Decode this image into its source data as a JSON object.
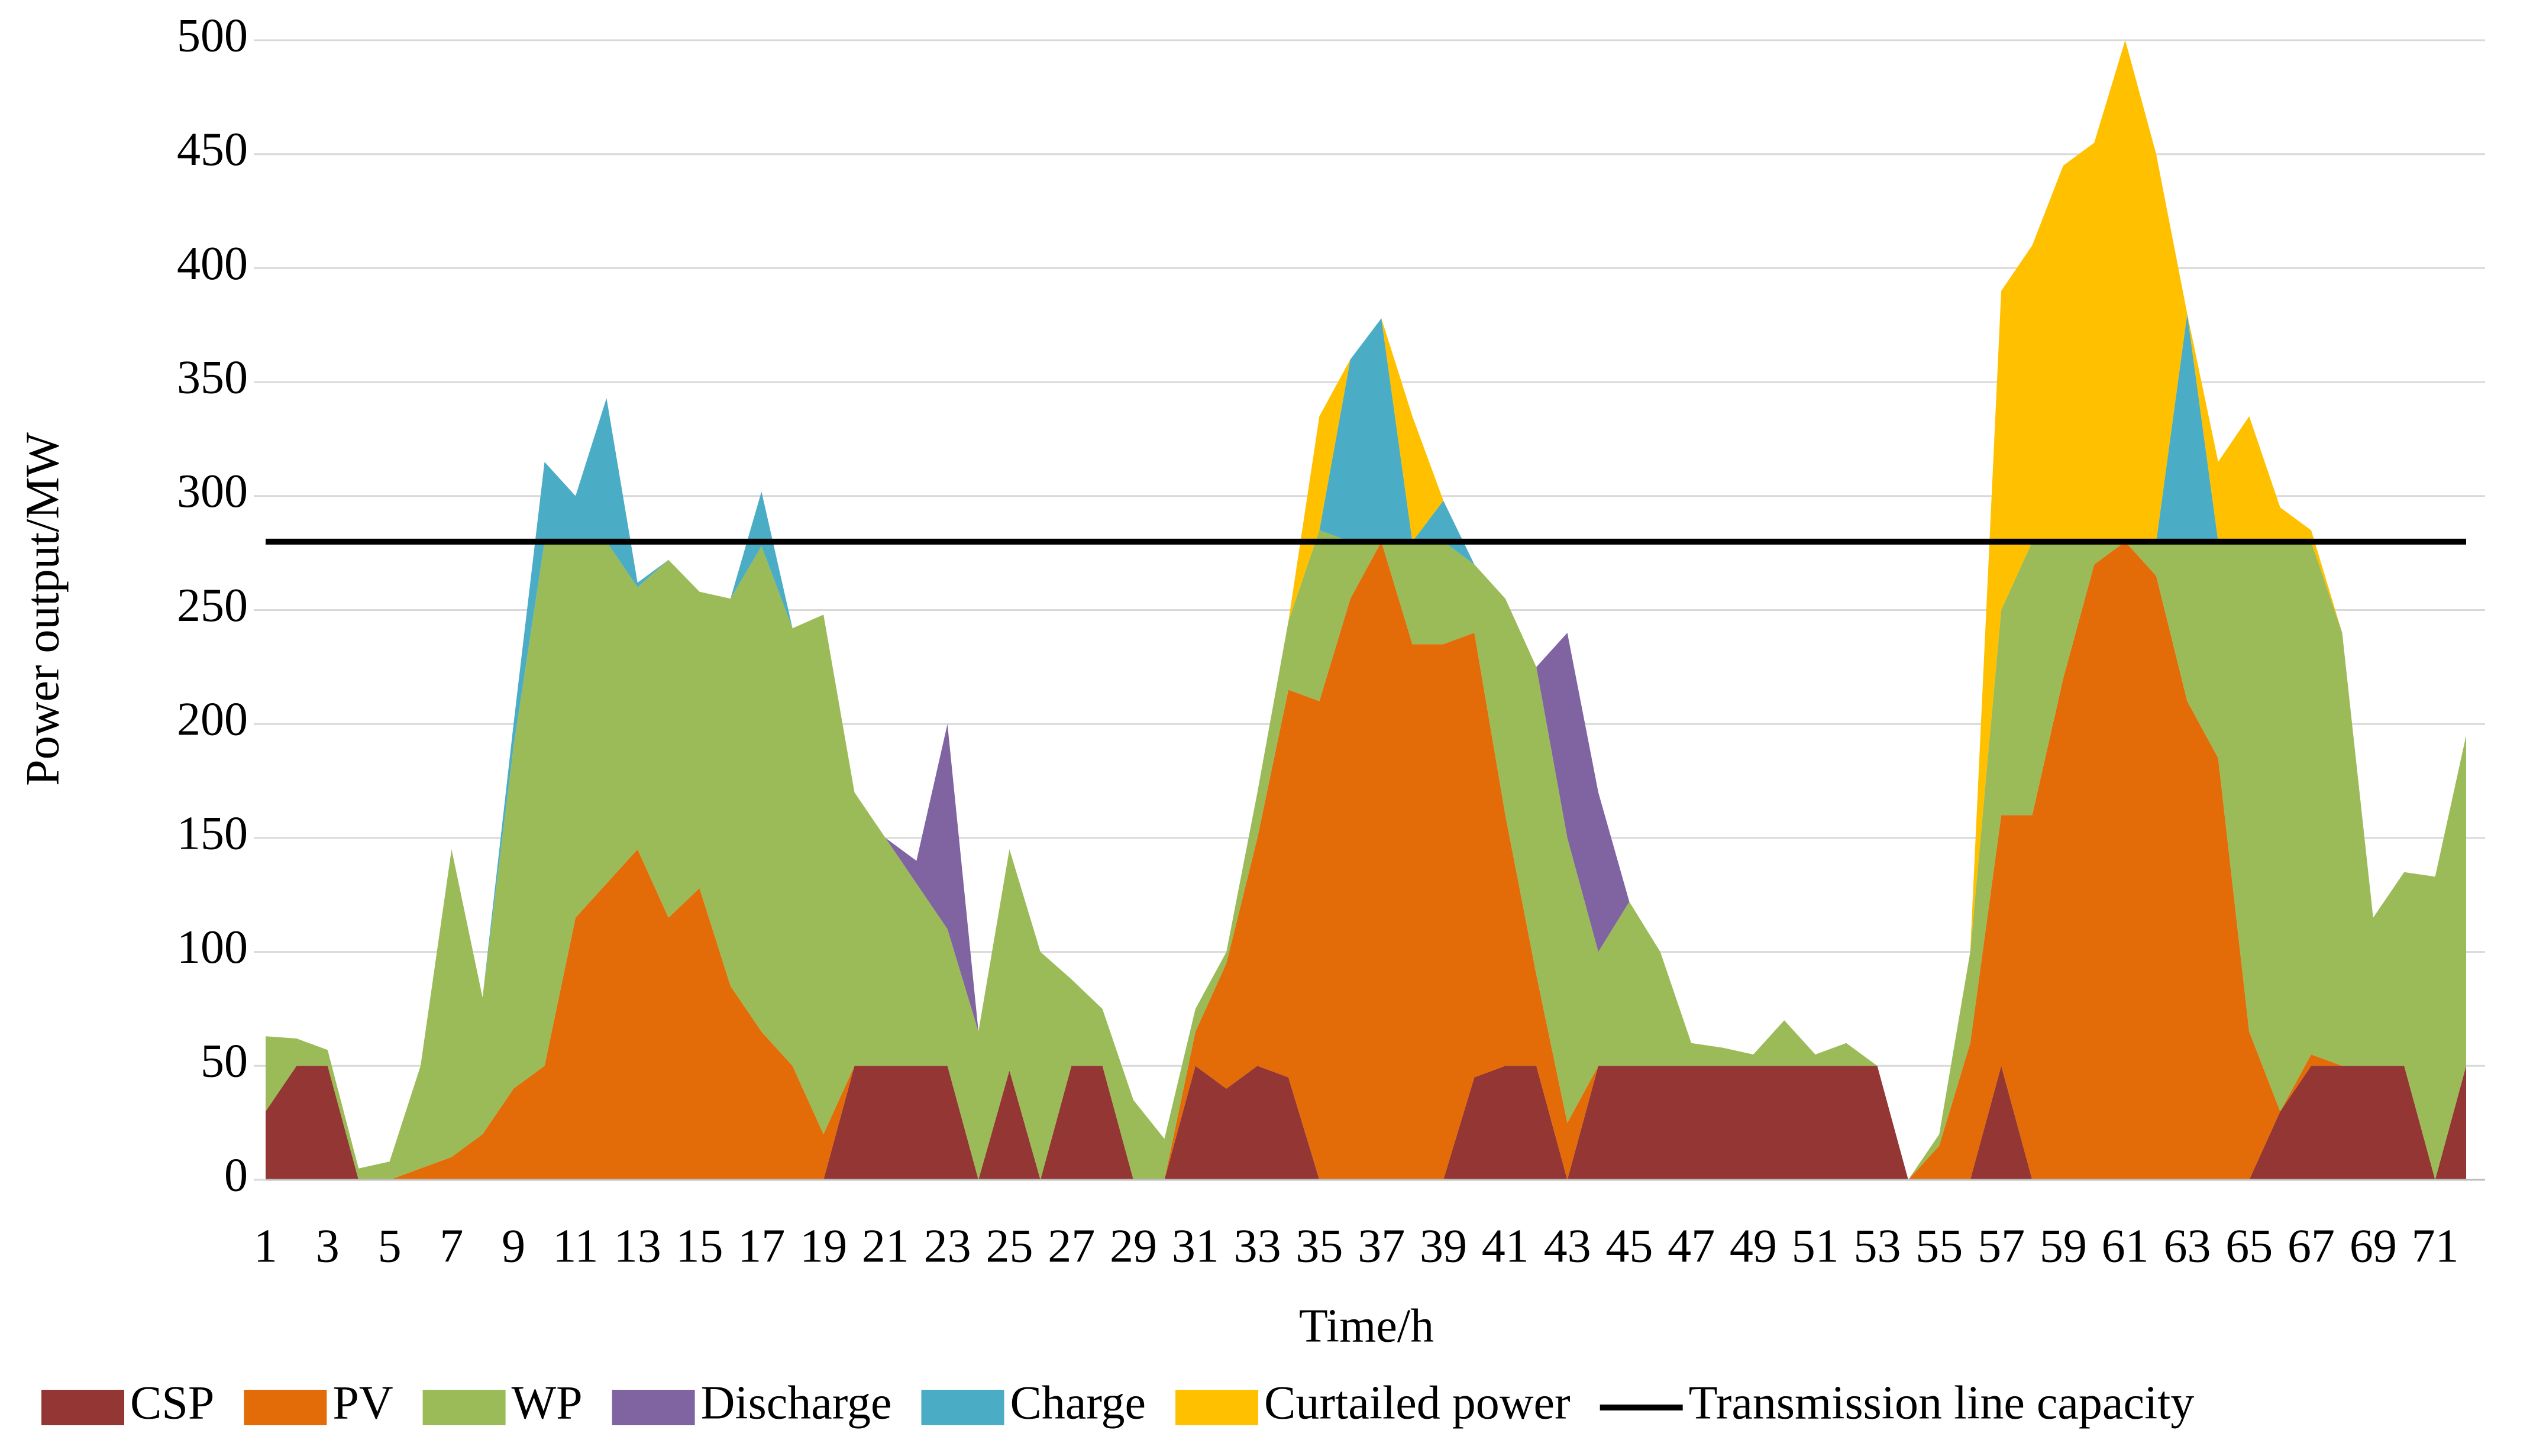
{
  "chart_data": {
    "type": "stacked-area",
    "xlabel": "Time/h",
    "ylabel": "Power output/MW",
    "categories": [
      1,
      null,
      3,
      null,
      5,
      null,
      7,
      null,
      9,
      null,
      11,
      null,
      13,
      null,
      15,
      null,
      17,
      null,
      19,
      null,
      21,
      null,
      23,
      null,
      25,
      null,
      27,
      null,
      29,
      null,
      31,
      null,
      33,
      null,
      35,
      null,
      37,
      null,
      39,
      null,
      41,
      null,
      43,
      null,
      45,
      null,
      47,
      null,
      49,
      null,
      51,
      null,
      53,
      null,
      55,
      null,
      57,
      null,
      59,
      null,
      61,
      null,
      63,
      null,
      65,
      null,
      67,
      null,
      69,
      null,
      71,
      null
    ],
    "ylim": [
      0,
      500
    ],
    "yticks": [
      0,
      50,
      100,
      150,
      200,
      250,
      300,
      350,
      400,
      450,
      500
    ],
    "grid": true,
    "legend": "bottom",
    "series": [
      {
        "name": "CSP",
        "color": "#943634",
        "values": [
          30,
          50,
          50,
          0,
          0,
          0,
          0,
          0,
          0,
          0,
          0,
          0,
          0,
          0,
          0,
          0,
          0,
          0,
          0,
          50,
          50,
          50,
          50,
          0,
          48,
          0,
          50,
          50,
          0,
          0,
          50,
          40,
          50,
          45,
          0,
          0,
          0,
          0,
          0,
          45,
          50,
          50,
          0,
          50,
          50,
          50,
          50,
          50,
          50,
          50,
          50,
          50,
          50,
          0,
          0,
          0,
          50,
          0,
          0,
          0,
          0,
          0,
          0,
          0,
          0,
          30,
          50,
          50,
          50,
          50,
          0,
          50
        ]
      },
      {
        "name": "PV",
        "color": "#E36C09",
        "values": [
          0,
          0,
          0,
          0,
          0,
          5,
          10,
          20,
          40,
          50,
          115,
          130,
          145,
          115,
          128,
          85,
          65,
          50,
          20,
          0,
          0,
          0,
          0,
          0,
          0,
          0,
          0,
          0,
          0,
          0,
          15,
          55,
          100,
          170,
          210,
          255,
          280,
          235,
          235,
          195,
          110,
          40,
          25,
          0,
          0,
          0,
          0,
          0,
          0,
          0,
          0,
          0,
          0,
          0,
          15,
          60,
          110,
          160,
          220,
          270,
          280,
          265,
          210,
          185,
          65,
          0,
          5,
          0,
          0,
          0,
          0,
          0
        ]
      },
      {
        "name": "WP",
        "color": "#9BBB59",
        "values": [
          33,
          12,
          7,
          5,
          8,
          45,
          135,
          60,
          150,
          230,
          165,
          150,
          115,
          157,
          130,
          170,
          213,
          192,
          228,
          120,
          100,
          80,
          60,
          65,
          97,
          100,
          38,
          25,
          35,
          18,
          10,
          5,
          20,
          30,
          75,
          25,
          0,
          45,
          45,
          30,
          95,
          135,
          125,
          50,
          72,
          50,
          10,
          8,
          5,
          20,
          5,
          10,
          0,
          0,
          5,
          40,
          90,
          120,
          60,
          10,
          0,
          15,
          70,
          95,
          215,
          250,
          225,
          190,
          65,
          85,
          133,
          145
        ]
      },
      {
        "name": "Discharge",
        "color": "#8064A2",
        "values": [
          0,
          0,
          0,
          0,
          0,
          0,
          0,
          0,
          0,
          0,
          0,
          0,
          0,
          0,
          0,
          0,
          0,
          0,
          0,
          0,
          0,
          10,
          90,
          0,
          0,
          0,
          0,
          0,
          0,
          0,
          0,
          0,
          0,
          0,
          0,
          0,
          0,
          0,
          0,
          0,
          0,
          0,
          90,
          70,
          0,
          0,
          0,
          0,
          0,
          0,
          0,
          0,
          0,
          0,
          0,
          0,
          0,
          0,
          0,
          0,
          0,
          0,
          0,
          0,
          0,
          0,
          0,
          0,
          0,
          0,
          0,
          0
        ]
      },
      {
        "name": "Charge",
        "color": "#4BACC6",
        "values": [
          0,
          0,
          0,
          0,
          0,
          0,
          0,
          0,
          10,
          35,
          20,
          63,
          2,
          0,
          0,
          0,
          24,
          0,
          0,
          0,
          0,
          0,
          0,
          0,
          0,
          0,
          0,
          0,
          0,
          0,
          0,
          0,
          0,
          0,
          0,
          80,
          98,
          0,
          18,
          0,
          0,
          0,
          0,
          0,
          0,
          0,
          0,
          0,
          0,
          0,
          0,
          0,
          0,
          0,
          0,
          0,
          0,
          0,
          0,
          0,
          0,
          0,
          100,
          0,
          0,
          0,
          0,
          0,
          0,
          0,
          0,
          0
        ]
      },
      {
        "name": "Curtailed power",
        "color": "#FFC000",
        "values": [
          0,
          0,
          0,
          0,
          0,
          0,
          0,
          0,
          0,
          0,
          0,
          0,
          0,
          0,
          0,
          0,
          0,
          0,
          0,
          0,
          0,
          0,
          0,
          0,
          0,
          0,
          0,
          0,
          0,
          0,
          0,
          0,
          0,
          0,
          50,
          0,
          0,
          55,
          0,
          0,
          0,
          0,
          0,
          0,
          0,
          0,
          0,
          0,
          0,
          0,
          0,
          0,
          0,
          0,
          0,
          0,
          140,
          130,
          165,
          175,
          220,
          170,
          0,
          35,
          55,
          15,
          5,
          0,
          0,
          0,
          0,
          0
        ]
      }
    ],
    "capacity_line": {
      "name": "Transmission line capacity",
      "color": "#000000",
      "value": 280
    }
  }
}
